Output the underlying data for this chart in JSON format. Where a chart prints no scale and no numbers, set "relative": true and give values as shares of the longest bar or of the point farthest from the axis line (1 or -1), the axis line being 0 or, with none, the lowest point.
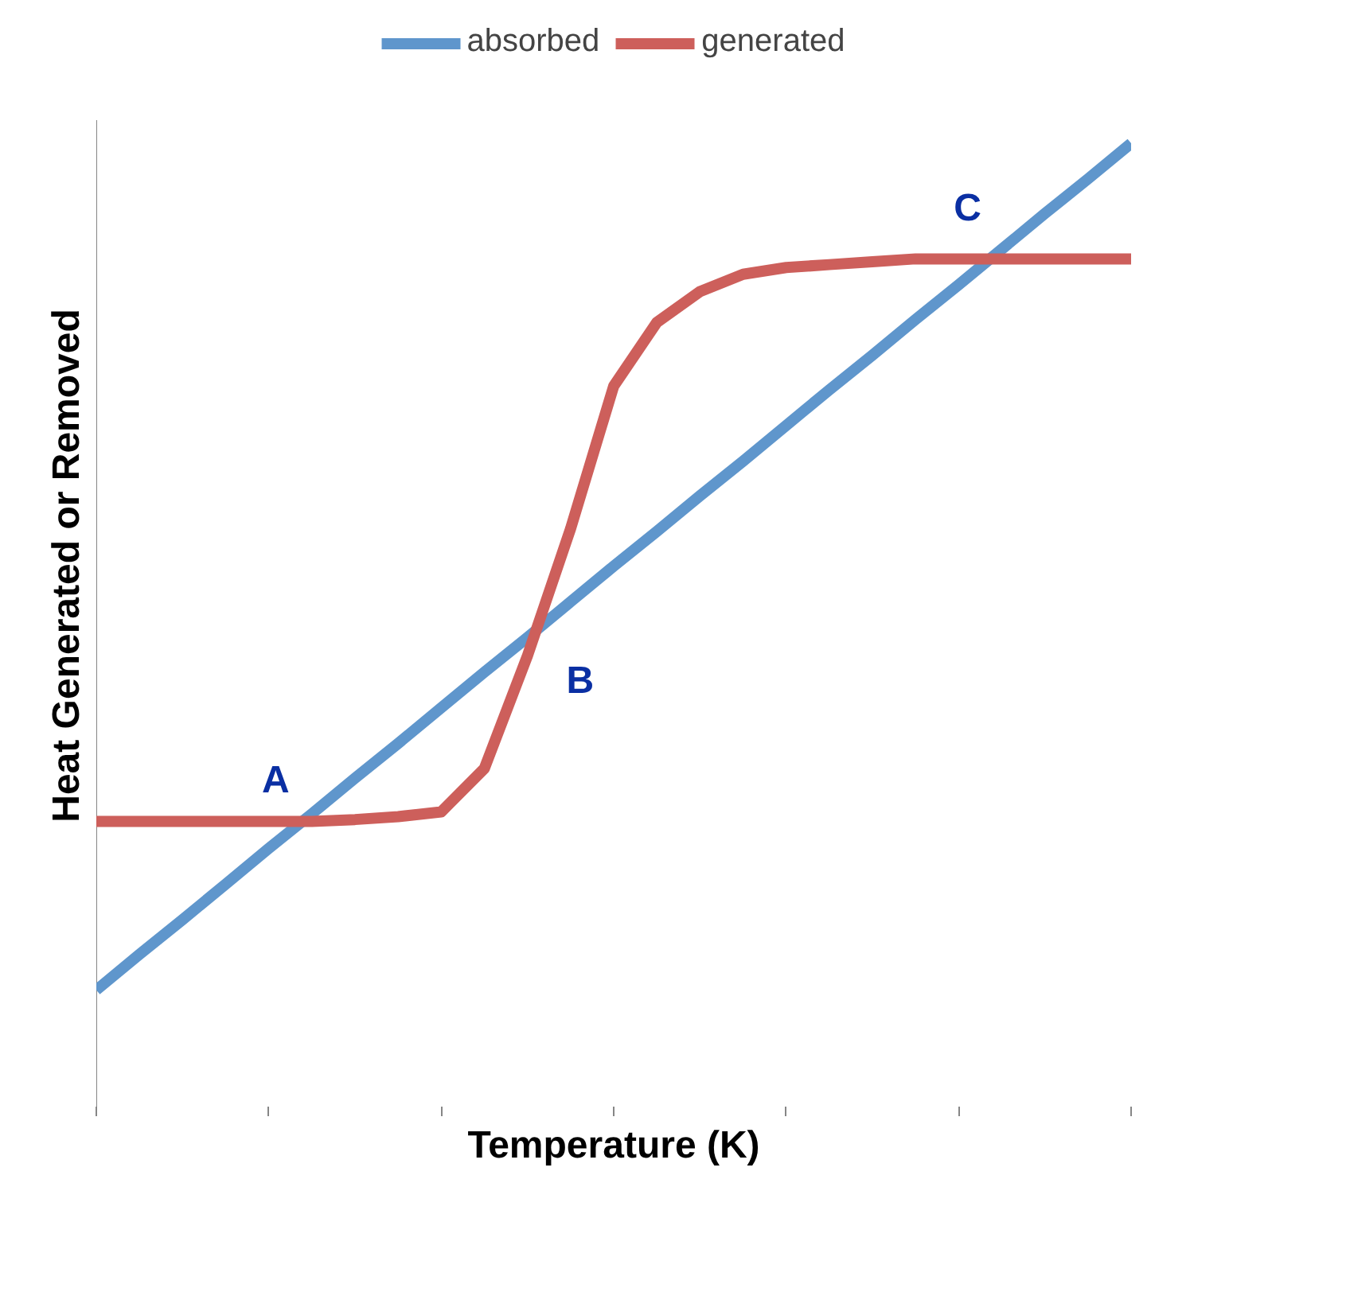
{
  "chart_data": {
    "type": "line",
    "relative": true,
    "xlabel": "Temperature (K)",
    "ylabel": "Heat Generated or Removed",
    "categories": [
      null,
      null,
      null,
      null,
      null,
      null,
      null,
      null,
      null,
      null,
      null,
      null,
      null,
      null,
      null,
      null,
      null,
      null,
      null,
      null,
      null,
      null,
      null,
      null,
      null
    ],
    "series": [
      {
        "name": "absorbed",
        "color": "#5f96cc",
        "values": [
          0.121,
          0.158,
          0.194,
          0.231,
          0.268,
          0.304,
          0.341,
          0.377,
          0.414,
          0.451,
          0.487,
          0.524,
          0.561,
          0.597,
          0.634,
          0.67,
          0.707,
          0.744,
          0.78,
          0.817,
          0.853,
          0.89,
          0.927,
          0.963,
          1.0
        ]
      },
      {
        "name": "generated",
        "color": "#cd5f5b",
        "values": [
          0.296,
          0.296,
          0.296,
          0.296,
          0.296,
          0.296,
          0.298,
          0.301,
          0.306,
          0.351,
          0.468,
          0.6,
          0.748,
          0.814,
          0.846,
          0.864,
          0.871,
          0.874,
          0.877,
          0.88,
          0.88,
          0.88,
          0.88,
          0.88,
          0.88
        ]
      }
    ],
    "annotations": [
      "A",
      "B",
      "C"
    ],
    "legend": "top",
    "marker": "none",
    "line_style": "solid",
    "grid": false
  }
}
